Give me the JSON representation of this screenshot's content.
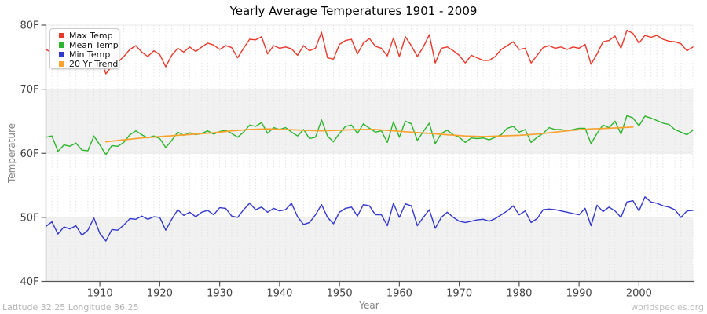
{
  "title": "Yearly Average Temperatures 1901 - 2009",
  "footer": {
    "left": "Latitude 32.25 Longitude 36.25",
    "right": "worldspecies.org"
  },
  "axes": {
    "x": {
      "label": "Year",
      "ticks": [
        1910,
        1920,
        1930,
        1940,
        1950,
        1960,
        1970,
        1980,
        1990,
        2000
      ]
    },
    "y": {
      "label": "Temperature",
      "ticks": [
        {
          "value": 40,
          "label": "40F"
        },
        {
          "value": 50,
          "label": "50F"
        },
        {
          "value": 60,
          "label": "60F"
        },
        {
          "value": 70,
          "label": "70F"
        },
        {
          "value": 80,
          "label": "80F"
        }
      ]
    }
  },
  "colors": {
    "axis": "#555555",
    "tick_label": "#444444",
    "grid_vertical": "#e3e3e3",
    "grid_horizontal": "#e8e8e8",
    "band_gray": "#f1f1f1"
  },
  "chart_data": {
    "type": "line",
    "title": "Yearly Average Temperatures 1901 - 2009",
    "xlabel": "Year",
    "ylabel": "Temperature",
    "x_range": [
      1901,
      2009
    ],
    "ylim": [
      40,
      80
    ],
    "legend_position": "top-left",
    "grid": "vertical dashed per year, gray horizontal bands 40-50F and 60-70F",
    "bands_gray": [
      [
        40,
        50
      ],
      [
        60,
        70
      ]
    ],
    "years": [
      1901,
      1902,
      1903,
      1904,
      1905,
      1906,
      1907,
      1908,
      1909,
      1910,
      1911,
      1912,
      1913,
      1914,
      1915,
      1916,
      1917,
      1918,
      1919,
      1920,
      1921,
      1922,
      1923,
      1924,
      1925,
      1926,
      1927,
      1928,
      1929,
      1930,
      1931,
      1932,
      1933,
      1934,
      1935,
      1936,
      1937,
      1938,
      1939,
      1940,
      1941,
      1942,
      1943,
      1944,
      1945,
      1946,
      1947,
      1948,
      1949,
      1950,
      1951,
      1952,
      1953,
      1954,
      1955,
      1956,
      1957,
      1958,
      1959,
      1960,
      1961,
      1962,
      1963,
      1964,
      1965,
      1966,
      1967,
      1968,
      1969,
      1970,
      1971,
      1972,
      1973,
      1974,
      1975,
      1976,
      1977,
      1978,
      1979,
      1980,
      1981,
      1982,
      1983,
      1984,
      1985,
      1986,
      1987,
      1988,
      1989,
      1990,
      1991,
      1992,
      1993,
      1994,
      1995,
      1996,
      1997,
      1998,
      1999,
      2000,
      2001,
      2002,
      2003,
      2004,
      2005,
      2006,
      2007,
      2008,
      2009
    ],
    "series": [
      {
        "name": "Max Temp",
        "color": "#e8392a",
        "width": 1.4,
        "values": [
          76.2,
          75.7,
          74.9,
          75.6,
          75.2,
          75.9,
          74.8,
          74.6,
          76.3,
          75.0,
          72.4,
          73.6,
          74.2,
          75.1,
          76.2,
          76.8,
          75.8,
          75.1,
          76.0,
          75.4,
          73.5,
          75.3,
          76.4,
          75.8,
          76.6,
          75.9,
          76.6,
          77.2,
          76.9,
          76.2,
          76.8,
          76.5,
          74.9,
          76.4,
          77.8,
          77.7,
          78.2,
          75.5,
          76.8,
          76.4,
          76.6,
          76.3,
          75.3,
          76.8,
          76.0,
          76.4,
          78.9,
          74.9,
          74.7,
          77.0,
          77.6,
          77.8,
          75.5,
          77.2,
          77.9,
          76.7,
          76.4,
          75.2,
          78.0,
          75.1,
          78.2,
          76.8,
          75.1,
          76.6,
          78.5,
          74.1,
          76.4,
          76.6,
          76.0,
          75.3,
          74.1,
          75.3,
          74.9,
          74.5,
          74.5,
          75.1,
          76.2,
          76.8,
          77.4,
          76.2,
          76.4,
          74.1,
          75.3,
          76.5,
          76.8,
          76.4,
          76.6,
          76.2,
          76.6,
          76.4,
          77.0,
          73.9,
          75.5,
          77.4,
          77.6,
          78.3,
          76.4,
          79.2,
          78.7,
          77.2,
          78.4,
          78.1,
          78.4,
          77.8,
          77.5,
          77.4,
          77.1,
          76.0,
          76.6
        ]
      },
      {
        "name": "Mean Temp",
        "color": "#2db52d",
        "width": 1.4,
        "values": [
          62.5,
          62.7,
          60.3,
          61.3,
          61.1,
          61.6,
          60.5,
          60.4,
          62.7,
          61.3,
          59.8,
          61.2,
          61.1,
          61.7,
          62.9,
          63.5,
          62.9,
          62.4,
          62.7,
          62.3,
          60.9,
          62.0,
          63.3,
          62.8,
          63.2,
          62.9,
          63.1,
          63.5,
          63.0,
          63.4,
          63.6,
          63.1,
          62.5,
          63.3,
          64.4,
          64.2,
          64.8,
          63.1,
          64.0,
          63.7,
          64.0,
          63.3,
          62.7,
          63.7,
          62.3,
          62.5,
          65.2,
          62.7,
          61.8,
          63.1,
          64.2,
          64.4,
          63.1,
          64.6,
          63.9,
          63.3,
          63.5,
          61.7,
          64.9,
          62.5,
          65.0,
          64.6,
          62.0,
          63.4,
          64.7,
          61.5,
          63.1,
          63.6,
          62.9,
          62.5,
          61.7,
          62.4,
          62.3,
          62.4,
          62.1,
          62.5,
          62.9,
          63.9,
          64.2,
          63.3,
          63.7,
          61.7,
          62.5,
          63.1,
          64.0,
          63.7,
          63.7,
          63.5,
          63.7,
          63.9,
          63.9,
          61.5,
          63.1,
          64.4,
          64.0,
          65.0,
          63.0,
          65.9,
          65.5,
          64.3,
          65.8,
          65.5,
          65.1,
          64.7,
          64.5,
          63.7,
          63.3,
          62.9,
          63.6
        ]
      },
      {
        "name": "Min Temp",
        "color": "#3338cf",
        "width": 1.4,
        "values": [
          48.6,
          49.3,
          47.4,
          48.5,
          48.2,
          48.7,
          47.2,
          48.0,
          49.9,
          47.5,
          46.3,
          48.1,
          48.0,
          48.8,
          49.8,
          49.7,
          50.2,
          49.7,
          50.1,
          50.0,
          48.0,
          49.7,
          51.2,
          50.3,
          50.8,
          50.1,
          50.8,
          51.1,
          50.4,
          51.5,
          51.4,
          50.2,
          50.0,
          51.2,
          52.2,
          51.2,
          51.6,
          50.8,
          51.4,
          51.0,
          51.2,
          52.2,
          50.1,
          48.9,
          49.2,
          50.4,
          52.0,
          50.0,
          49.0,
          50.8,
          51.4,
          51.6,
          50.2,
          52.0,
          51.8,
          50.4,
          50.4,
          48.7,
          52.2,
          50.0,
          52.1,
          51.8,
          48.7,
          50.0,
          51.2,
          48.3,
          50.0,
          50.8,
          50.0,
          49.4,
          49.2,
          49.4,
          49.6,
          49.7,
          49.4,
          49.8,
          50.4,
          51.0,
          51.8,
          50.4,
          51.0,
          49.2,
          49.8,
          51.2,
          51.3,
          51.2,
          51.0,
          50.8,
          50.6,
          50.4,
          51.4,
          48.7,
          51.9,
          50.9,
          51.6,
          51.0,
          50.0,
          52.4,
          52.6,
          51.0,
          53.2,
          52.4,
          52.2,
          51.8,
          51.6,
          51.2,
          50.0,
          51.0,
          51.1
        ]
      },
      {
        "name": "20 Yr Trend",
        "color": "#fca32f",
        "width": 1.7,
        "points": [
          [
            1911,
            61.8
          ],
          [
            1914,
            62.1
          ],
          [
            1917,
            62.4
          ],
          [
            1920,
            62.6
          ],
          [
            1923,
            62.8
          ],
          [
            1926,
            63.0
          ],
          [
            1929,
            63.2
          ],
          [
            1932,
            63.5
          ],
          [
            1935,
            63.7
          ],
          [
            1938,
            63.8
          ],
          [
            1941,
            63.7
          ],
          [
            1944,
            63.6
          ],
          [
            1947,
            63.5
          ],
          [
            1950,
            63.6
          ],
          [
            1953,
            63.7
          ],
          [
            1956,
            63.7
          ],
          [
            1959,
            63.5
          ],
          [
            1962,
            63.3
          ],
          [
            1965,
            63.1
          ],
          [
            1968,
            62.9
          ],
          [
            1971,
            62.7
          ],
          [
            1974,
            62.6
          ],
          [
            1977,
            62.7
          ],
          [
            1980,
            62.8
          ],
          [
            1983,
            63.0
          ],
          [
            1986,
            63.3
          ],
          [
            1989,
            63.6
          ],
          [
            1992,
            63.8
          ],
          [
            1995,
            63.9
          ],
          [
            1997,
            64.0
          ],
          [
            1999,
            64.1
          ]
        ]
      }
    ]
  }
}
